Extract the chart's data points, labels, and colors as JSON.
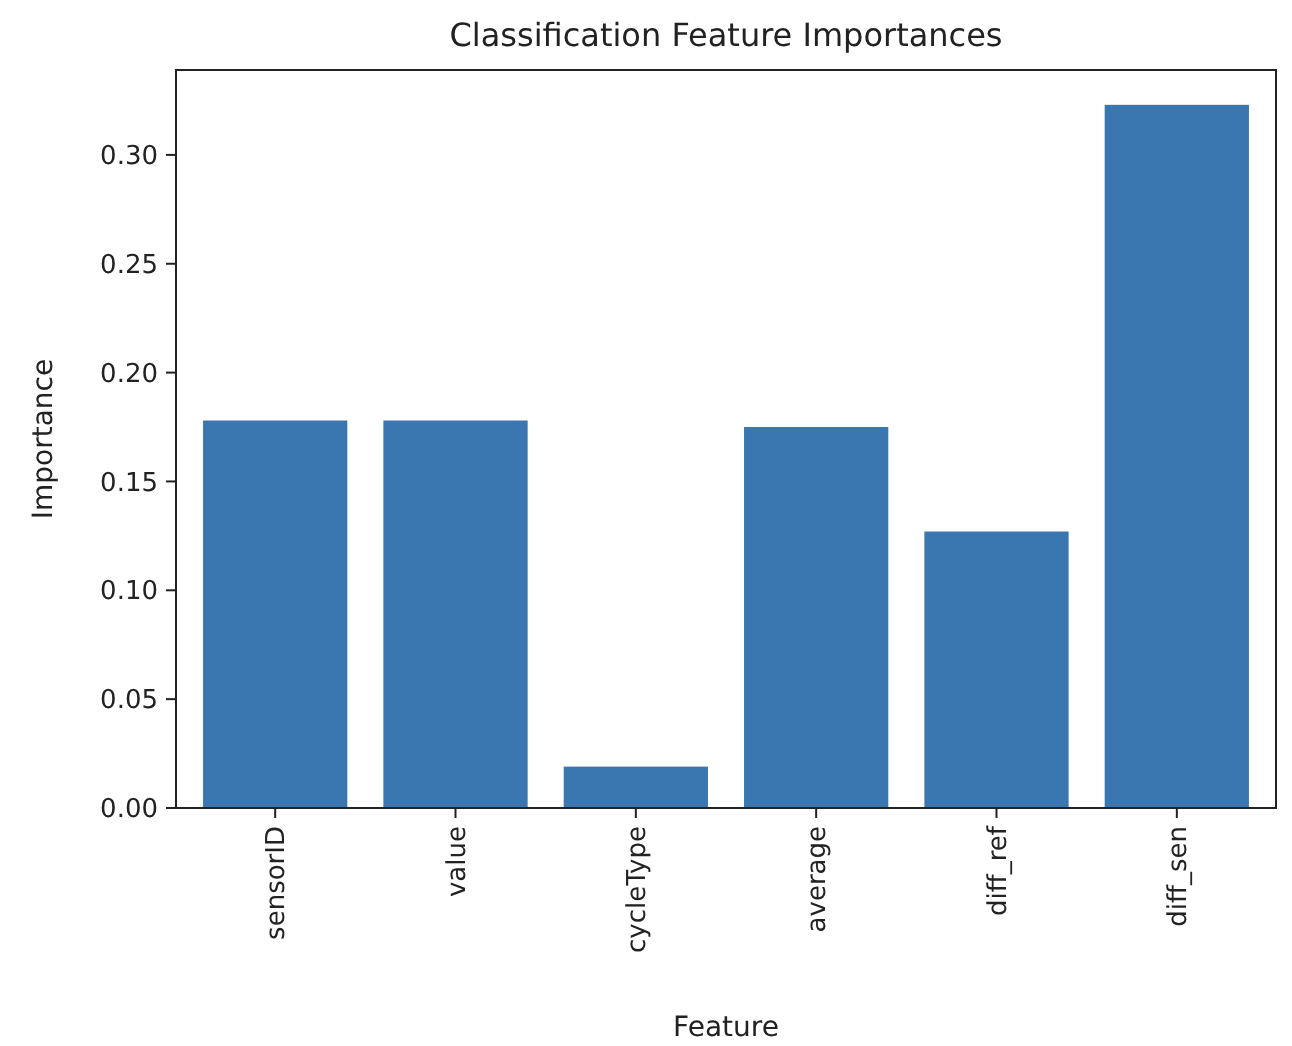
{
  "chart_data": {
    "type": "bar",
    "title": "Classification Feature Importances",
    "xlabel": "Feature",
    "ylabel": "Importance",
    "categories": [
      "sensorID",
      "value",
      "cycleType",
      "average",
      "diff_ref",
      "diff_sen"
    ],
    "values": [
      0.178,
      0.178,
      0.019,
      0.175,
      0.127,
      0.323
    ],
    "color": "#3a76af",
    "ylim": [
      0,
      0.339
    ],
    "yticks": [
      {
        "value": 0,
        "label": "0.00"
      },
      {
        "value": 0.05,
        "label": "0.05"
      },
      {
        "value": 0.1,
        "label": "0.10"
      },
      {
        "value": 0.15,
        "label": "0.15"
      },
      {
        "value": 0.2,
        "label": "0.20"
      },
      {
        "value": 0.25,
        "label": "0.25"
      },
      {
        "value": 0.3,
        "label": "0.30"
      }
    ]
  }
}
